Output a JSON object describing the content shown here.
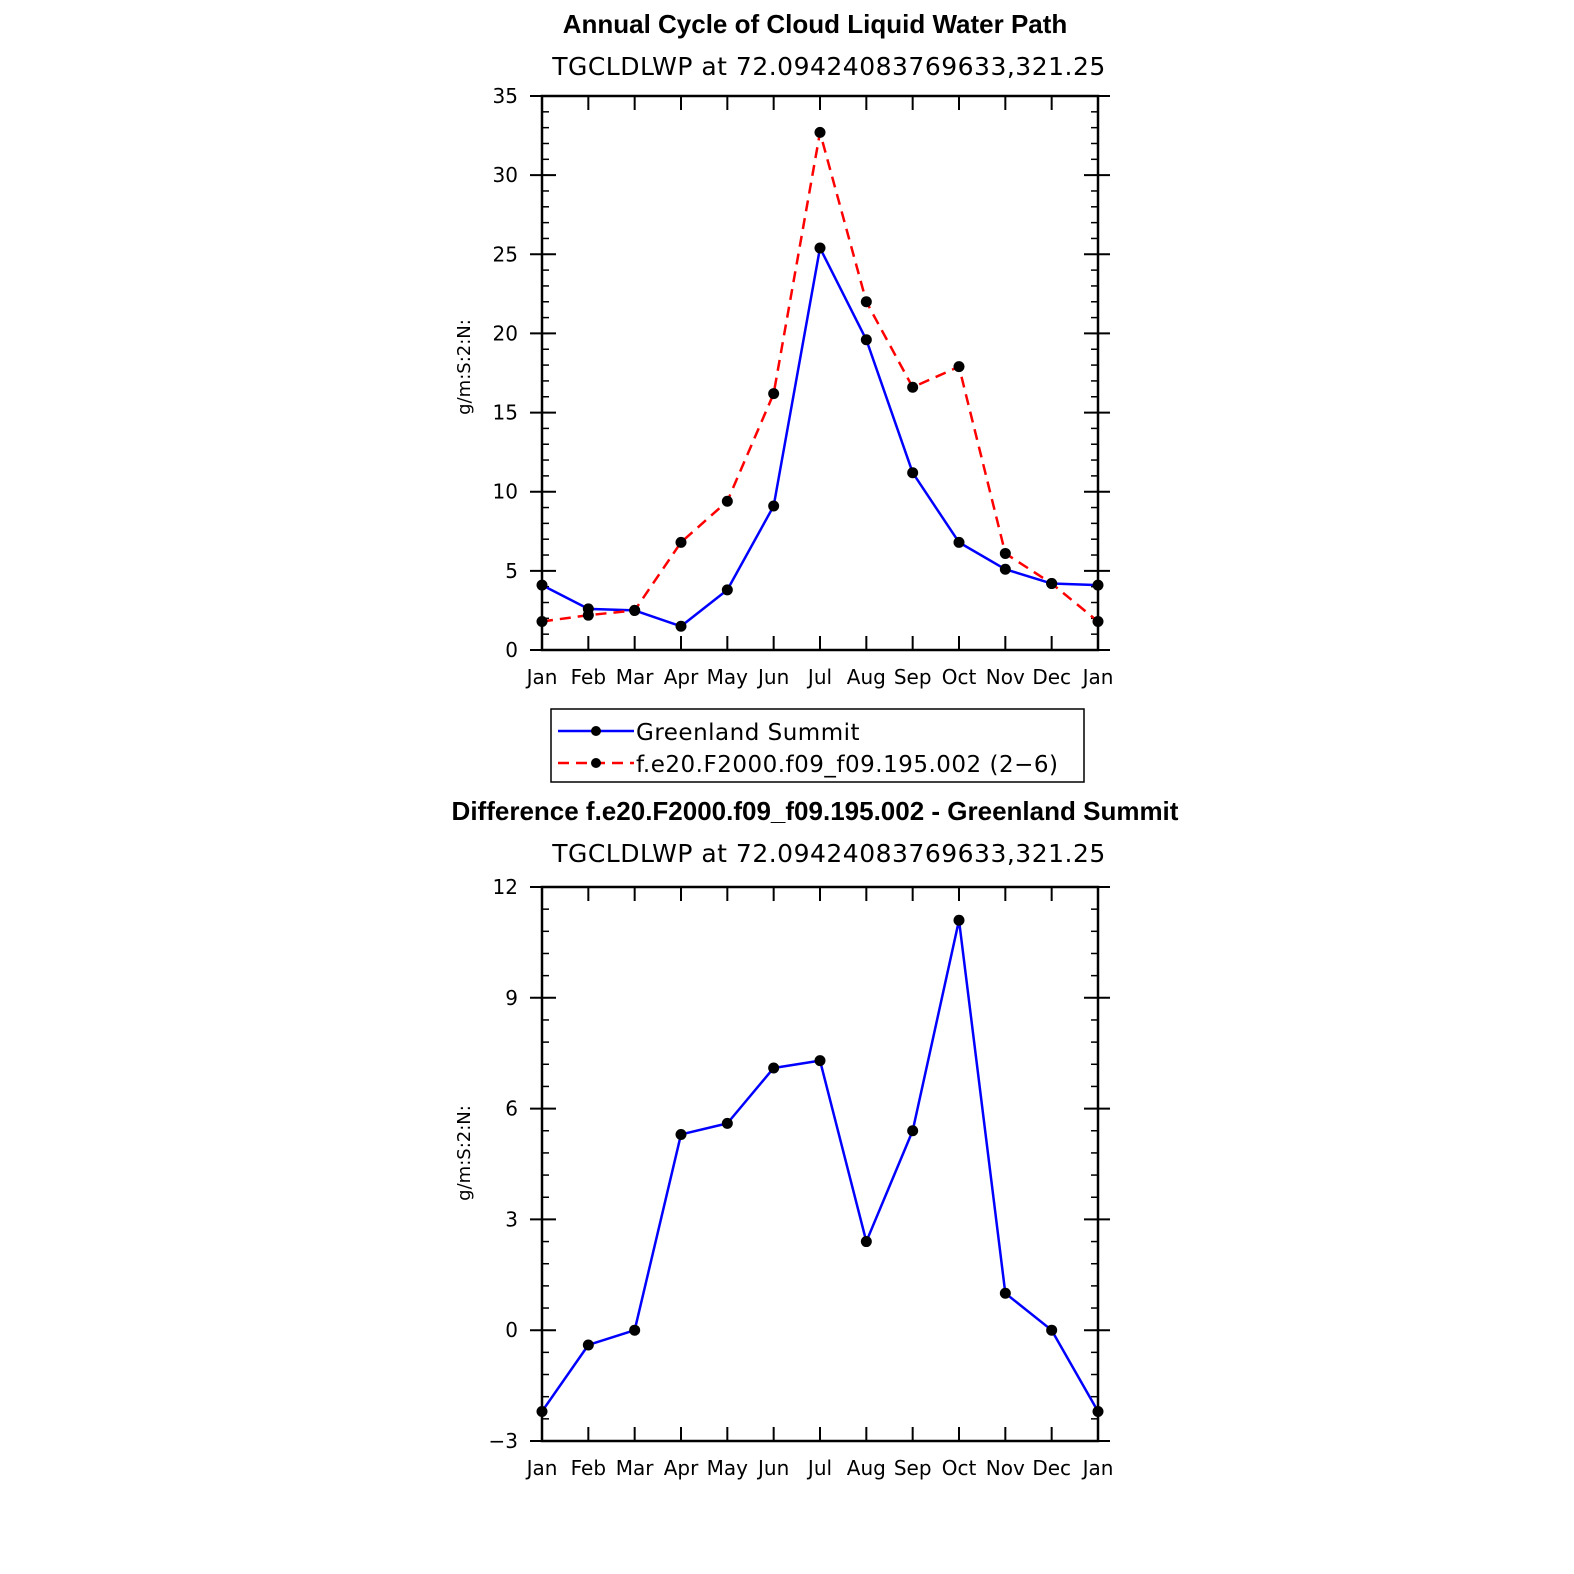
{
  "chart_data": [
    {
      "type": "line",
      "title": "Annual Cycle of Cloud Liquid Water Path",
      "subtitle": "TGCLDLWP  at  72.09424083769633,321.25",
      "ylabel": "g/m:S:2:N:",
      "xlabel": "",
      "categories": [
        "Jan",
        "Feb",
        "Mar",
        "Apr",
        "May",
        "Jun",
        "Jul",
        "Aug",
        "Sep",
        "Oct",
        "Nov",
        "Dec",
        "Jan"
      ],
      "ylim": [
        0,
        35
      ],
      "yticks": [
        0,
        5,
        10,
        15,
        20,
        25,
        30,
        35
      ],
      "grid": false,
      "legend_position": "below",
      "series": [
        {
          "name": "Greenland Summit",
          "color": "#0000ff",
          "dash": "solid",
          "values": [
            4.1,
            2.6,
            2.5,
            1.5,
            3.8,
            9.1,
            25.4,
            19.6,
            11.2,
            6.8,
            5.1,
            4.2,
            4.1
          ]
        },
        {
          "name": "f.e20.F2000.f09_f09.195.002 (2−6)",
          "color": "#ff0000",
          "dash": "dashed",
          "values": [
            1.8,
            2.2,
            2.5,
            6.8,
            9.4,
            16.2,
            32.7,
            22.0,
            16.6,
            17.9,
            6.1,
            4.2,
            1.8
          ]
        }
      ]
    },
    {
      "type": "line",
      "title": "Difference f.e20.F2000.f09_f09.195.002 - Greenland Summit",
      "subtitle": "TGCLDLWP  at  72.09424083769633,321.25",
      "ylabel": "g/m:S:2:N:",
      "xlabel": "",
      "categories": [
        "Jan",
        "Feb",
        "Mar",
        "Apr",
        "May",
        "Jun",
        "Jul",
        "Aug",
        "Sep",
        "Oct",
        "Nov",
        "Dec",
        "Jan"
      ],
      "ylim": [
        -3,
        12
      ],
      "yticks": [
        -3,
        0,
        3,
        6,
        9,
        12
      ],
      "ytick_labels": [
        "−3",
        "0",
        "3",
        "6",
        "9",
        "12"
      ],
      "grid": false,
      "series": [
        {
          "color": "#0000ff",
          "dash": "solid",
          "values": [
            -2.2,
            -0.4,
            0.0,
            5.3,
            5.6,
            7.1,
            7.3,
            2.4,
            5.4,
            11.1,
            1.0,
            0.0,
            -2.2
          ]
        }
      ]
    }
  ]
}
